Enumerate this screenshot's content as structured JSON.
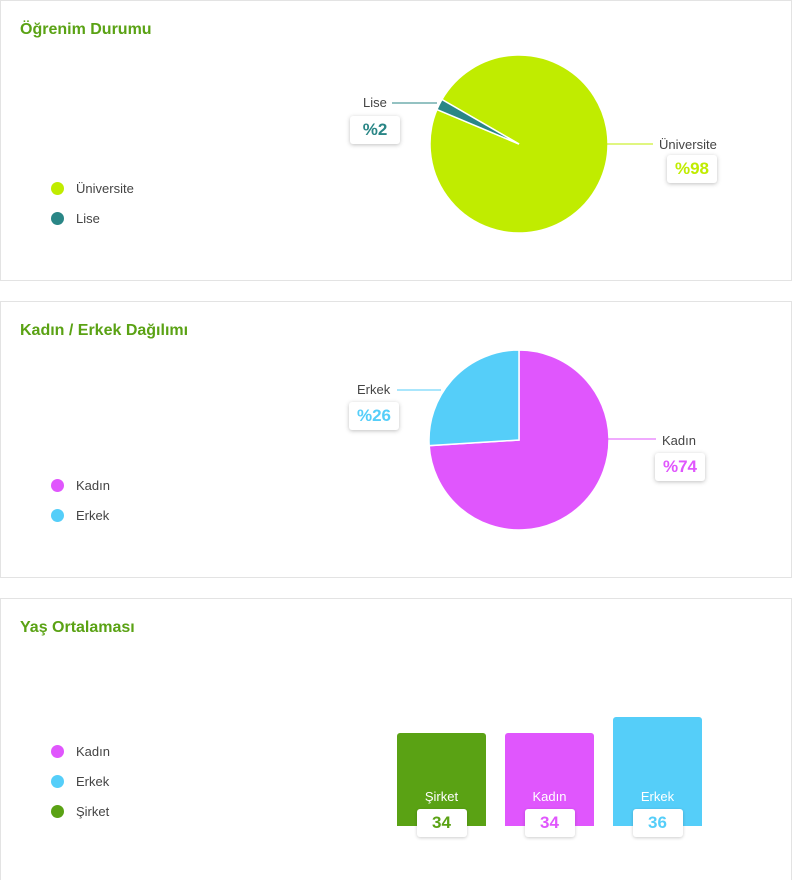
{
  "colors": {
    "universite": "#c0ec00",
    "lise": "#2a8686",
    "kadin": "#e056fd",
    "erkek": "#55cef9",
    "sirket": "#5aa214",
    "title": "#5aa214"
  },
  "panels": [
    {
      "title": "Öğrenim Durumu",
      "legend": [
        "Üniversite",
        "Lise"
      ]
    },
    {
      "title": "Kadın / Erkek Dağılımı",
      "legend": [
        "Kadın",
        "Erkek"
      ]
    },
    {
      "title": "Yaş Ortalaması",
      "legend": [
        "Kadın",
        "Erkek",
        "Şirket"
      ]
    }
  ],
  "chart_data": [
    {
      "type": "pie",
      "title": "Öğrenim Durumu",
      "slices": [
        {
          "name": "Üniversite",
          "value": 98,
          "label": "%98"
        },
        {
          "name": "Lise",
          "value": 2,
          "label": "%2"
        }
      ]
    },
    {
      "type": "pie",
      "title": "Kadın / Erkek Dağılımı",
      "slices": [
        {
          "name": "Kadın",
          "value": 74,
          "label": "%74"
        },
        {
          "name": "Erkek",
          "value": 26,
          "label": "%26"
        }
      ]
    },
    {
      "type": "bar",
      "title": "Yaş Ortalaması",
      "categories": [
        "Şirket",
        "Kadın",
        "Erkek"
      ],
      "values": [
        34,
        34,
        36
      ],
      "value_labels": [
        "34",
        "34",
        "36"
      ]
    }
  ]
}
